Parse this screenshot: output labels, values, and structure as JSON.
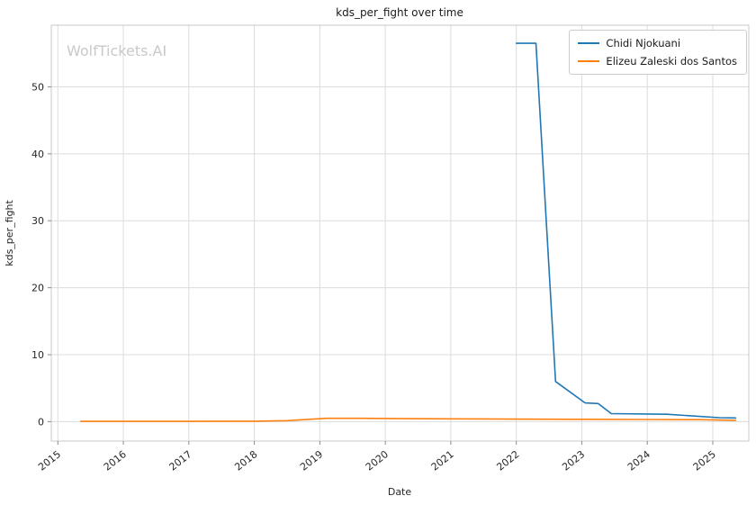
{
  "watermark": "WolfTickets.AI",
  "chart_data": {
    "type": "line",
    "title": "kds_per_fight over time",
    "xlabel": "Date",
    "ylabel": "kds_per_fight",
    "xlim": [
      2014.9,
      2025.55
    ],
    "ylim": [
      -2.9,
      59.2
    ],
    "xticks": [
      2015,
      2016,
      2017,
      2018,
      2019,
      2020,
      2021,
      2022,
      2023,
      2024,
      2025
    ],
    "yticks": [
      0,
      10,
      20,
      30,
      40,
      50
    ],
    "grid": true,
    "legend_position": "upper right",
    "series": [
      {
        "name": "Chidi Njokuani",
        "color": "#1f77b4",
        "x": [
          2022.0,
          2022.3,
          2022.6,
          2023.05,
          2023.25,
          2023.45,
          2024.0,
          2024.3,
          2025.1,
          2025.35
        ],
        "y": [
          56.5,
          56.5,
          6.0,
          2.8,
          2.7,
          1.2,
          1.15,
          1.1,
          0.6,
          0.55
        ]
      },
      {
        "name": "Elizeu Zaleski dos Santos",
        "color": "#ff7f0e",
        "x": [
          2015.35,
          2016.0,
          2017.0,
          2018.0,
          2018.5,
          2019.1,
          2019.6,
          2020.3,
          2021.0,
          2022.0,
          2023.0,
          2024.0,
          2024.8,
          2025.35
        ],
        "y": [
          0.05,
          0.05,
          0.05,
          0.07,
          0.15,
          0.5,
          0.5,
          0.45,
          0.42,
          0.38,
          0.35,
          0.33,
          0.3,
          0.2
        ]
      }
    ]
  }
}
